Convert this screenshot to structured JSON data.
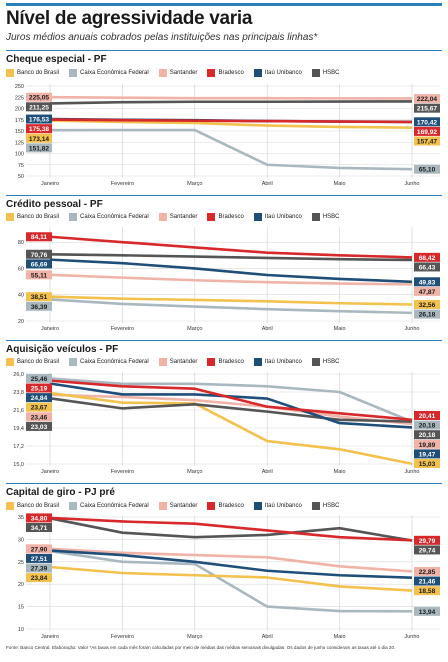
{
  "header": {
    "title": "Nível de agressividade varia",
    "subtitle": "Juros médios anuais cobrados pelas instituições nas principais linhas*"
  },
  "legend_names": [
    "Banco do Brasil",
    "Caixa Econômica Federal",
    "Santander",
    "Bradesco",
    "Itaú Unibanco",
    "HSBC"
  ],
  "colors": {
    "Banco do Brasil": "#f2c14e",
    "Caixa Econômica Federal": "#a9b8bf",
    "Santander": "#f0b3a8",
    "Bradesco": "#d7282b",
    "Itaú Unibanco": "#1f4e79",
    "HSBC": "#555555",
    "accent": "#2c7fb8"
  },
  "chart_data": [
    {
      "type": "line",
      "title": "Cheque especial - PF",
      "x": [
        "Janeiro",
        "Fevereiro",
        "Março",
        "Abril",
        "Maio",
        "Junho"
      ],
      "ylim": [
        50,
        250
      ],
      "yticks": [
        50,
        75,
        100,
        125,
        150,
        175,
        200,
        225,
        250
      ],
      "grid": true,
      "legend": "top",
      "series": [
        {
          "name": "Banco do Brasil",
          "values": [
            173.14,
            170,
            168,
            162,
            159,
            157.47
          ],
          "start_label": "173,14",
          "end_label": "157,47"
        },
        {
          "name": "Caixa Econômica Federal",
          "values": [
            151.82,
            152,
            152,
            75,
            68,
            65.1
          ],
          "start_label": "151,82",
          "end_label": "65,10"
        },
        {
          "name": "Santander",
          "values": [
            225.05,
            224,
            223,
            223,
            222.5,
            222.04
          ],
          "start_label": "225,05",
          "end_label": "222,04"
        },
        {
          "name": "Bradesco",
          "values": [
            175.38,
            174,
            173,
            172,
            171,
            169.92
          ],
          "start_label": "175,38",
          "end_label": "169,92"
        },
        {
          "name": "Itaú Unibanco",
          "values": [
            176.53,
            175,
            174,
            172,
            171,
            170.42
          ],
          "start_label": "176,53",
          "end_label": "170,42"
        },
        {
          "name": "HSBC",
          "values": [
            211.25,
            214,
            215,
            215,
            215.5,
            215.67
          ],
          "start_label": "211,25",
          "end_label": "215,67"
        }
      ]
    },
    {
      "type": "line",
      "title": "Crédito pessoal - PF",
      "x": [
        "Janeiro",
        "Fevereiro",
        "Março",
        "Abril",
        "Maio",
        "Junho"
      ],
      "ylim": [
        20,
        90
      ],
      "yticks": [
        20,
        40,
        60,
        80
      ],
      "grid": true,
      "legend": "top",
      "series": [
        {
          "name": "Banco do Brasil",
          "values": [
            38.51,
            37,
            36,
            35,
            33.5,
            32.56
          ],
          "start_label": "38,51",
          "end_label": "32,56"
        },
        {
          "name": "Caixa Econômica Federal",
          "values": [
            36.39,
            33,
            31,
            29,
            27.5,
            26.18
          ],
          "start_label": "36,39",
          "end_label": "26,18"
        },
        {
          "name": "Santander",
          "values": [
            55.11,
            53,
            51,
            49.5,
            48.5,
            47.87
          ],
          "start_label": "55,11",
          "end_label": "47,87"
        },
        {
          "name": "Bradesco",
          "values": [
            84.11,
            80,
            76,
            72,
            70,
            68.42
          ],
          "start_label": "84,11",
          "end_label": "68,42"
        },
        {
          "name": "Itaú Unibanco",
          "values": [
            66.69,
            64,
            60,
            55,
            52,
            49.83
          ],
          "start_label": "66,69",
          "end_label": "49,83"
        },
        {
          "name": "HSBC",
          "values": [
            70.76,
            70,
            69,
            68,
            67,
            66.43
          ],
          "start_label": "70,76",
          "end_label": "66,43"
        }
      ]
    },
    {
      "type": "line",
      "title": "Aquisição veículos - PF",
      "x": [
        "Janeiro",
        "Fevereiro",
        "Março",
        "Abril",
        "Maio",
        "Junho"
      ],
      "ylim": [
        15,
        26
      ],
      "yticks": [
        15.0,
        17.2,
        19.4,
        21.6,
        23.8,
        26.0
      ],
      "ytick_labels": [
        "15,0",
        "17,2",
        "19,4",
        "21,6",
        "23,8",
        "26,0"
      ],
      "grid": true,
      "legend": "top",
      "series": [
        {
          "name": "Banco do Brasil",
          "values": [
            23.67,
            22.5,
            22.4,
            17.8,
            16.8,
            15.03
          ],
          "start_label": "23,67",
          "end_label": "15,03"
        },
        {
          "name": "Caixa Econômica Federal",
          "values": [
            25.46,
            24.8,
            24.8,
            24.5,
            23.8,
            20.18
          ],
          "start_label": "25,46",
          "end_label": "20,18"
        },
        {
          "name": "Santander",
          "values": [
            23.46,
            23.2,
            22.8,
            22.0,
            20.8,
            19.89
          ],
          "start_label": "23,46",
          "end_label": "19,89"
        },
        {
          "name": "Bradesco",
          "values": [
            25.19,
            24.5,
            24.2,
            22.0,
            21.2,
            20.41
          ],
          "start_label": "25,19",
          "end_label": "20,41"
        },
        {
          "name": "Itaú Unibanco",
          "values": [
            24.84,
            23.5,
            23.5,
            23.0,
            20.0,
            19.47
          ],
          "start_label": "24,84",
          "end_label": "19,47"
        },
        {
          "name": "HSBC",
          "values": [
            23.03,
            21.8,
            22.3,
            21.4,
            20.4,
            20.18
          ],
          "start_label": "23,03",
          "end_label": "20,18"
        }
      ]
    },
    {
      "type": "line",
      "title": "Capital de giro - PJ pré",
      "x": [
        "Janeiro",
        "Fevereiro",
        "Março",
        "Abril",
        "Maio",
        "Junho"
      ],
      "ylim": [
        10,
        35
      ],
      "yticks": [
        10,
        15,
        20,
        25,
        30,
        35
      ],
      "grid": true,
      "legend": "top",
      "series": [
        {
          "name": "Banco do Brasil",
          "values": [
            23.84,
            22.5,
            22.0,
            21.5,
            19.5,
            18.58
          ],
          "start_label": "23,84",
          "end_label": "18,58"
        },
        {
          "name": "Caixa Econômica Federal",
          "values": [
            27.39,
            25.0,
            24.5,
            15.0,
            14.0,
            13.94
          ],
          "start_label": "27,39",
          "end_label": "13,94"
        },
        {
          "name": "Santander",
          "values": [
            27.9,
            27.0,
            26.5,
            26.0,
            24.0,
            22.85
          ],
          "start_label": "27,90",
          "end_label": "22,85"
        },
        {
          "name": "Bradesco",
          "values": [
            34.8,
            34.0,
            33.5,
            32.0,
            30.5,
            29.79
          ],
          "start_label": "34,80",
          "end_label": "29,79"
        },
        {
          "name": "Itaú Unibanco",
          "values": [
            27.51,
            26.5,
            25.0,
            23.0,
            22.0,
            21.46
          ],
          "start_label": "27,51",
          "end_label": "21,46"
        },
        {
          "name": "HSBC",
          "values": [
            34.71,
            31.5,
            30.5,
            31.0,
            32.5,
            29.74
          ],
          "start_label": "34,71",
          "end_label": "29,74"
        }
      ]
    }
  ],
  "footnote": "Fonte: Banco Central. Elaboração: Valor  *As taxas em cada mês foram calculadas por meio de médias das médias semanais divulgadas. Os dados de junho consideram as taxas até o dia 20."
}
